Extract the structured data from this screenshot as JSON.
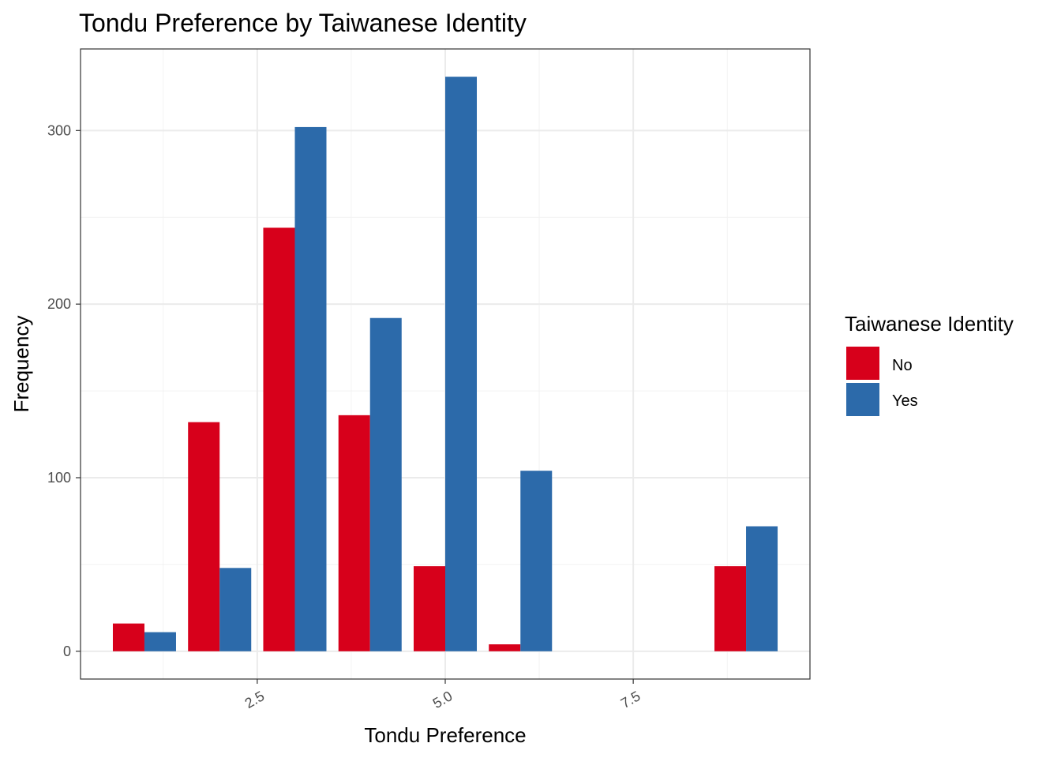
{
  "chart_data": {
    "type": "bar",
    "title": "Tondu Preference by Taiwanese Identity",
    "xlabel": "Tondu Preference",
    "ylabel": "Frequency",
    "x": [
      1,
      2,
      3,
      4,
      5,
      6,
      7,
      8,
      9
    ],
    "series": [
      {
        "name": "No",
        "color": "#d7001b",
        "values": [
          16,
          132,
          244,
          136,
          49,
          4,
          0,
          0,
          49
        ]
      },
      {
        "name": "Yes",
        "color": "#2c6aaa",
        "values": [
          11,
          48,
          302,
          192,
          331,
          104,
          0,
          0,
          72
        ]
      }
    ],
    "xlim": [
      0.15,
      9.85
    ],
    "ylim": [
      -16,
      347
    ],
    "xticks": [
      2.5,
      5.0,
      7.5
    ],
    "xtick_labels": [
      "2.5",
      "5.0",
      "7.5"
    ],
    "yticks": [
      0,
      100,
      200,
      300
    ],
    "ytick_labels": [
      "0",
      "100",
      "200",
      "300"
    ],
    "grid": true,
    "legend": {
      "title": "Taiwanese Identity",
      "position": "right",
      "entries": [
        "No",
        "Yes"
      ]
    }
  }
}
